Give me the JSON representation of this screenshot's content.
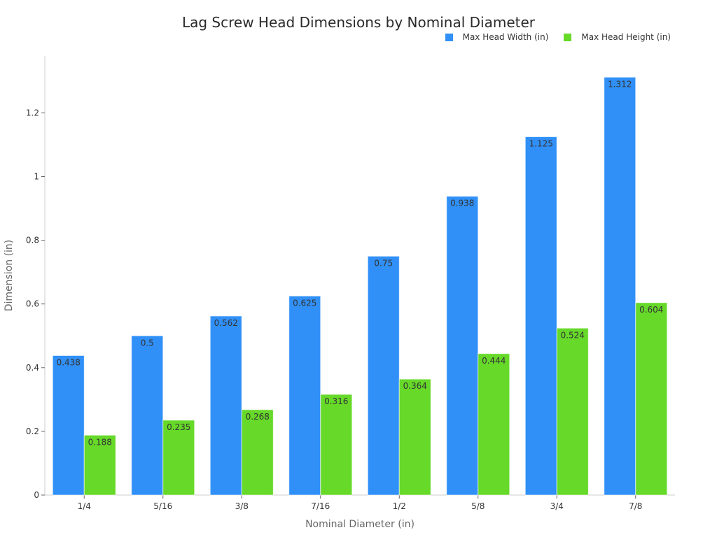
{
  "chart_data": {
    "type": "bar",
    "title": "Lag Screw Head Dimensions by Nominal Diameter",
    "xlabel": "Nominal Diameter (in)",
    "ylabel": "Dimension (in)",
    "categories": [
      "1/4",
      "5/16",
      "3/8",
      "7/16",
      "1/2",
      "5/8",
      "3/4",
      "7/8"
    ],
    "series": [
      {
        "name": "Max Head Width (in)",
        "color": "#3090f8",
        "values": [
          0.438,
          0.5,
          0.562,
          0.625,
          0.75,
          0.938,
          1.125,
          1.312
        ]
      },
      {
        "name": "Max Head Height (in)",
        "color": "#66d929",
        "values": [
          0.188,
          0.235,
          0.268,
          0.316,
          0.364,
          0.444,
          0.524,
          0.604
        ]
      }
    ],
    "ylim": [
      0,
      1.38
    ],
    "yticks": [
      0,
      0.2,
      0.4,
      0.6,
      0.8,
      1,
      1.2
    ],
    "ytick_labels": [
      "0",
      "0.2",
      "0.4",
      "0.6",
      "0.8",
      "1",
      "1.2"
    ],
    "grid": false,
    "legend_position": "top-right",
    "data_labels": true
  }
}
